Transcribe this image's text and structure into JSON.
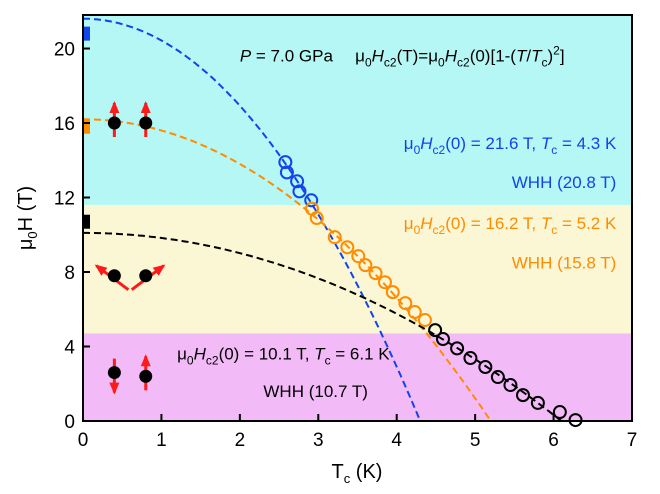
{
  "chart_data": {
    "type": "scatter",
    "xlabel": {
      "main": "T",
      "sub": "c",
      "unit": " (K)"
    },
    "ylabel": {
      "pre": "μ",
      "sub": "0",
      "main": "H (T)"
    },
    "xlim": [
      0,
      7
    ],
    "ylim": [
      0,
      21.8
    ],
    "xticks": [
      "0",
      "1",
      "2",
      "3",
      "4",
      "5",
      "6",
      "7"
    ],
    "yticks": [
      "0",
      "4",
      "8",
      "12",
      "16",
      "20"
    ],
    "bands": [
      {
        "from": 11.6,
        "to": 21.8,
        "color": "#b4f7f4"
      },
      {
        "from": 4.7,
        "to": 11.6,
        "color": "#fbf6d3"
      },
      {
        "from": 0,
        "to": 4.7,
        "color": "#f3baf8"
      }
    ],
    "series": [
      {
        "name": "blue",
        "color": "#1144ee",
        "Hc2_0": 21.6,
        "Tc": 4.3,
        "points": [
          [
            2.58,
            13.9
          ],
          [
            2.6,
            13.35
          ],
          [
            2.73,
            12.87
          ],
          [
            2.76,
            12.33
          ],
          [
            2.91,
            11.85
          ]
        ]
      },
      {
        "name": "orange",
        "color": "#ff8c00",
        "Hc2_0": 16.2,
        "Tc": 5.2,
        "points": [
          [
            2.92,
            11.4
          ],
          [
            2.98,
            10.9
          ],
          [
            3.21,
            9.87
          ],
          [
            3.37,
            9.33
          ],
          [
            3.51,
            8.85
          ],
          [
            3.6,
            8.37
          ],
          [
            3.73,
            7.94
          ],
          [
            3.85,
            7.45
          ],
          [
            3.95,
            6.92
          ],
          [
            4.11,
            6.33
          ],
          [
            4.23,
            5.85
          ],
          [
            4.36,
            5.42
          ]
        ]
      },
      {
        "name": "black",
        "color": "#000000",
        "Hc2_0": 10.1,
        "Tc": 6.1,
        "points": [
          [
            4.49,
            4.88
          ],
          [
            4.59,
            4.4
          ],
          [
            4.77,
            3.9
          ],
          [
            4.94,
            3.38
          ],
          [
            5.13,
            2.9
          ],
          [
            5.29,
            2.36
          ],
          [
            5.45,
            1.93
          ],
          [
            5.61,
            1.39
          ],
          [
            5.8,
            0.97
          ],
          [
            6.08,
            0.48
          ],
          [
            6.28,
            0.05
          ]
        ]
      }
    ],
    "whh_markers": [
      {
        "value": 20.8,
        "color": "#1144ee"
      },
      {
        "value": 15.8,
        "color": "#ff8c00"
      },
      {
        "value": 10.7,
        "color": "#000000"
      }
    ],
    "spin_dots": [
      {
        "T": 0.4,
        "H": 16.0,
        "arrow": "up"
      },
      {
        "T": 0.8,
        "H": 16.0,
        "arrow": "up"
      },
      {
        "T": 0.4,
        "H": 7.8,
        "arrow": "cant-left"
      },
      {
        "T": 0.8,
        "H": 7.8,
        "arrow": "cant-right"
      },
      {
        "T": 0.4,
        "H": 2.6,
        "arrow": "down"
      },
      {
        "T": 0.8,
        "H": 2.4,
        "arrow": "up"
      }
    ],
    "annotations": [
      {
        "id": "pressure",
        "color": "#000",
        "anchor": "start",
        "T": 2.0,
        "H": 19.3,
        "segments": [
          {
            "t": "P",
            "i": 1
          },
          {
            "t": " = 7.0 GPa"
          }
        ]
      },
      {
        "id": "formula",
        "color": "#000",
        "anchor": "start",
        "T": 3.47,
        "H": 19.3,
        "segments": [
          {
            "t": "μ"
          },
          {
            "t": "0",
            "s": 1
          },
          {
            "t": "H",
            "i": 1
          },
          {
            "t": "c2",
            "s": 1
          },
          {
            "t": "(T)=μ"
          },
          {
            "t": "0",
            "s": 1
          },
          {
            "t": "H",
            "i": 1
          },
          {
            "t": "c2",
            "s": 1
          },
          {
            "t": "(0)[1-("
          },
          {
            "t": "T",
            "i": 1
          },
          {
            "t": "/"
          },
          {
            "t": "T",
            "i": 1
          },
          {
            "t": "c",
            "s": 1
          },
          {
            "t": ")"
          },
          {
            "t": "2",
            "u": 1
          },
          {
            "t": "]"
          }
        ]
      },
      {
        "id": "blue-fit",
        "color": "#1144ee",
        "anchor": "end",
        "T": 6.8,
        "H": 14.6,
        "segments": [
          {
            "t": "μ"
          },
          {
            "t": "0",
            "s": 1
          },
          {
            "t": "H",
            "i": 1
          },
          {
            "t": "c2",
            "s": 1
          },
          {
            "t": "(0) = 21.6 T, "
          },
          {
            "t": "T",
            "i": 1
          },
          {
            "t": "c",
            "s": 1
          },
          {
            "t": " = 4.3 K"
          }
        ]
      },
      {
        "id": "blue-whh",
        "color": "#1144ee",
        "anchor": "end",
        "T": 6.8,
        "H": 12.5,
        "segments": [
          {
            "t": "WHH (20.8 T)"
          }
        ]
      },
      {
        "id": "orange-fit",
        "color": "#ff8c00",
        "anchor": "end",
        "T": 6.8,
        "H": 10.3,
        "segments": [
          {
            "t": "μ"
          },
          {
            "t": "0",
            "s": 1
          },
          {
            "t": "H",
            "i": 1
          },
          {
            "t": "c2",
            "s": 1
          },
          {
            "t": "(0) = 16.2 T, "
          },
          {
            "t": "T",
            "i": 1
          },
          {
            "t": "c",
            "s": 1
          },
          {
            "t": " = 5.2 K"
          }
        ]
      },
      {
        "id": "orange-whh",
        "color": "#ff8c00",
        "anchor": "end",
        "T": 6.8,
        "H": 8.2,
        "segments": [
          {
            "t": "WHH (15.8 T)"
          }
        ]
      },
      {
        "id": "black-fit",
        "color": "#000",
        "anchor": "start",
        "T": 1.2,
        "H": 3.3,
        "segments": [
          {
            "t": "μ"
          },
          {
            "t": "0",
            "s": 1
          },
          {
            "t": "H",
            "i": 1
          },
          {
            "t": "c2",
            "s": 1
          },
          {
            "t": "(0) = 10.1 T, "
          },
          {
            "t": "T",
            "i": 1
          },
          {
            "t": "c",
            "s": 1
          },
          {
            "t": " = 6.1 K"
          }
        ]
      },
      {
        "id": "black-whh",
        "color": "#000",
        "anchor": "start",
        "T": 2.3,
        "H": 1.3,
        "segments": [
          {
            "t": "WHH (10.7 T)"
          }
        ]
      }
    ]
  }
}
